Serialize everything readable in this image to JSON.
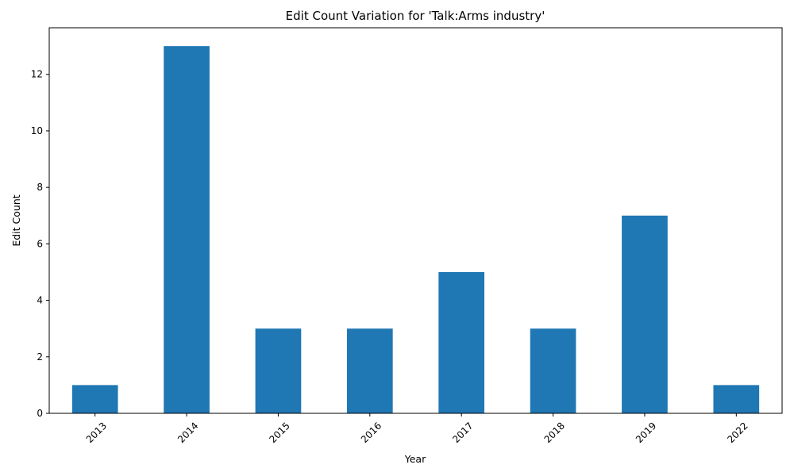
{
  "chart_data": {
    "type": "bar",
    "title": "Edit Count Variation for 'Talk:Arms industry'",
    "xlabel": "Year",
    "ylabel": "Edit Count",
    "categories": [
      "2013",
      "2014",
      "2015",
      "2016",
      "2017",
      "2018",
      "2019",
      "2022"
    ],
    "values": [
      1,
      13,
      3,
      3,
      5,
      3,
      7,
      1
    ],
    "ylim": [
      0,
      13.65
    ],
    "yticks": [
      0,
      2,
      4,
      6,
      8,
      10,
      12
    ],
    "bar_color": "#1f77b4",
    "grid": false,
    "legend": null,
    "xtick_rotation": 45
  }
}
